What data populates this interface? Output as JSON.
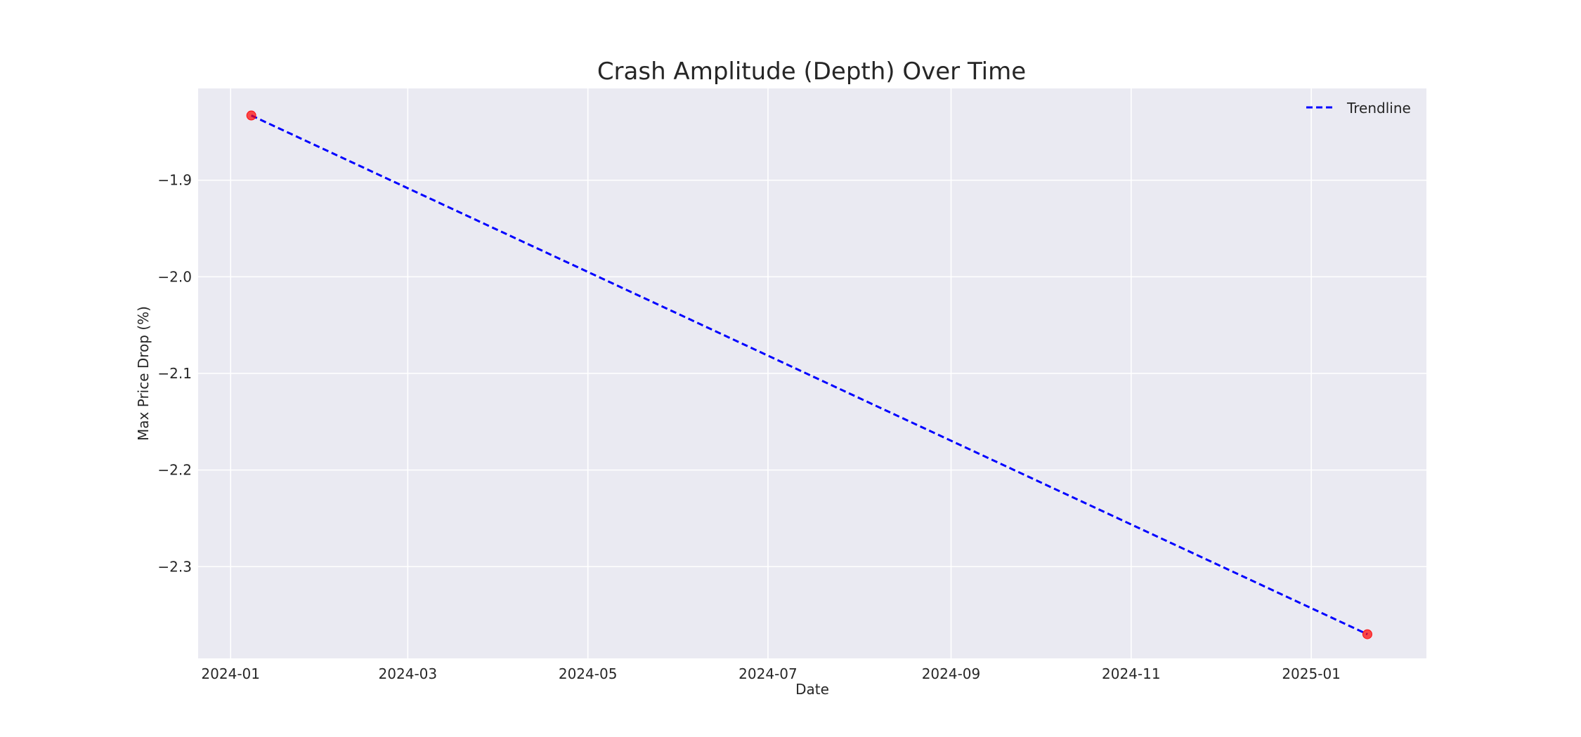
{
  "chart_data": {
    "type": "scatter",
    "title": "Crash Amplitude (Depth) Over Time",
    "xlabel": "Date",
    "ylabel": "Max Price Drop (%)",
    "x_type": "date",
    "xlim": [
      "2023-12-21",
      "2025-02-09"
    ],
    "ylim": [
      -2.395,
      -1.805
    ],
    "x_ticks": [
      "2024-01-01",
      "2024-03-01",
      "2024-05-01",
      "2024-07-01",
      "2024-09-01",
      "2024-11-01",
      "2025-01-01"
    ],
    "x_tick_labels": [
      "2024-01",
      "2024-03",
      "2024-05",
      "2024-07",
      "2024-09",
      "2024-11",
      "2025-01"
    ],
    "y_ticks": [
      -1.9,
      -2.0,
      -2.1,
      -2.2,
      -2.3
    ],
    "y_tick_labels": [
      "−1.9",
      "−2.0",
      "−2.1",
      "−2.2",
      "−2.3"
    ],
    "grid": true,
    "legend_position": "top-right",
    "series": [
      {
        "type": "scatter",
        "color": "#ff0000",
        "points": [
          {
            "x": "2024-01-08",
            "y": -1.833
          },
          {
            "x": "2025-01-20",
            "y": -2.37
          }
        ]
      },
      {
        "name": "Trendline",
        "type": "line",
        "style": "dashed",
        "color": "#0000ff",
        "points": [
          {
            "x": "2024-01-08",
            "y": -1.833
          },
          {
            "x": "2025-01-20",
            "y": -2.37
          }
        ]
      }
    ],
    "colors": {
      "plot_background": "#eaeaf2",
      "grid": "#ffffff"
    }
  }
}
